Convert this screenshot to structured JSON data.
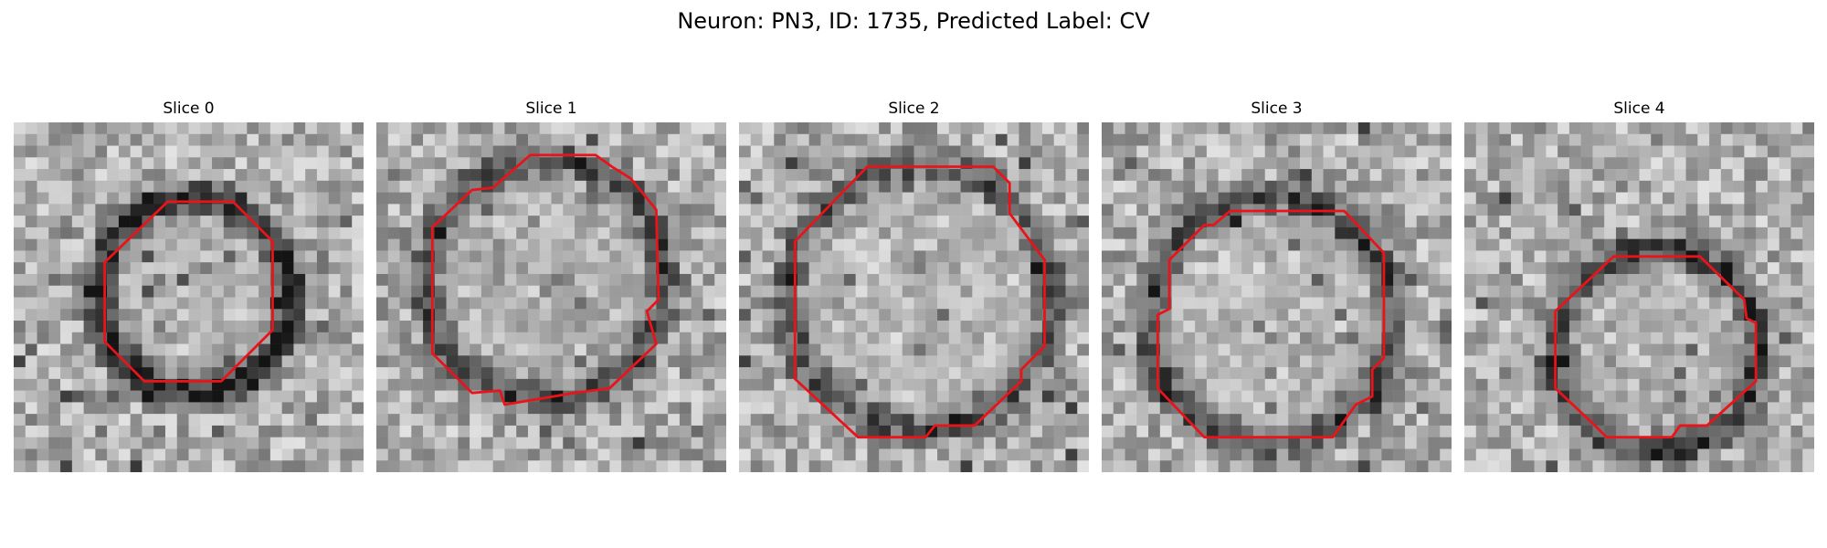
{
  "figure": {
    "title": "Neuron: PN3, ID: 1735, Predicted Label: CV",
    "contour_color": "#e8141a"
  },
  "panels": [
    {
      "title": "Slice 0"
    },
    {
      "title": "Slice 1"
    },
    {
      "title": "Slice 2"
    },
    {
      "title": "Slice 3"
    },
    {
      "title": "Slice 4"
    }
  ]
}
